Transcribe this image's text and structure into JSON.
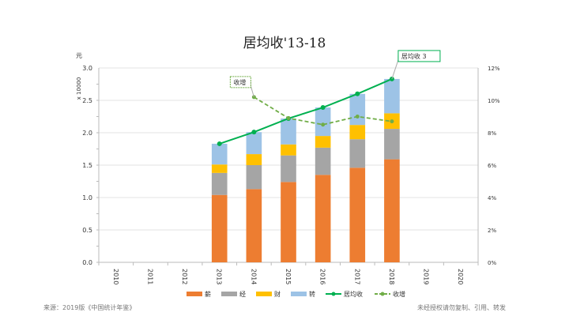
{
  "chart_data": {
    "type": "bar",
    "title": "居均收'13-18",
    "y_unit": "元",
    "y_multiplier": "x 10000",
    "categories": [
      "2010",
      "2011",
      "2012",
      "2013",
      "2014",
      "2015",
      "2016",
      "2017",
      "2018",
      "2019",
      "2020"
    ],
    "ylim": [
      0,
      3.0
    ],
    "yticks": [
      "0.0",
      "0.5",
      "1.0",
      "1.5",
      "2.0",
      "2.5",
      "3.0"
    ],
    "y2lim": [
      0,
      12
    ],
    "y2ticks": [
      "0%",
      "2%",
      "4%",
      "6%",
      "8%",
      "10%",
      "12%"
    ],
    "stacked": true,
    "series": [
      {
        "name": "薪",
        "kind": "bar",
        "color": "#ED7D31",
        "values": [
          null,
          null,
          null,
          1.04,
          1.13,
          1.24,
          1.35,
          1.46,
          1.59,
          null,
          null
        ]
      },
      {
        "name": "经",
        "kind": "bar",
        "color": "#A5A5A5",
        "values": [
          null,
          null,
          null,
          0.34,
          0.37,
          0.41,
          0.42,
          0.44,
          0.47,
          null,
          null
        ]
      },
      {
        "name": "财",
        "kind": "bar",
        "color": "#FFC000",
        "values": [
          null,
          null,
          null,
          0.13,
          0.17,
          0.17,
          0.18,
          0.22,
          0.24,
          null,
          null
        ]
      },
      {
        "name": "转",
        "kind": "bar",
        "color": "#9DC3E6",
        "values": [
          null,
          null,
          null,
          0.32,
          0.34,
          0.4,
          0.44,
          0.48,
          0.53,
          null,
          null
        ]
      },
      {
        "name": "居均收",
        "kind": "line",
        "axis": "left",
        "color": "#00B050",
        "values": [
          null,
          null,
          null,
          1.83,
          2.01,
          2.22,
          2.39,
          2.6,
          2.83,
          null,
          null
        ]
      },
      {
        "name": "收增",
        "kind": "line-dashed",
        "axis": "right",
        "color": "#70AD47",
        "values": [
          null,
          null,
          null,
          null,
          10.2,
          8.9,
          8.5,
          9.0,
          8.7,
          null,
          null
        ]
      }
    ],
    "annotations": [
      {
        "text": "收增",
        "series": "收增",
        "category": "2014"
      },
      {
        "text": "居均收 3",
        "series": "居均收",
        "category": "2018"
      }
    ],
    "grid": true,
    "legend": "bottom"
  },
  "footer": {
    "source": "来源：2019版《中国统计年鉴》",
    "note": "未经授权请勿复制、引用、转发"
  }
}
